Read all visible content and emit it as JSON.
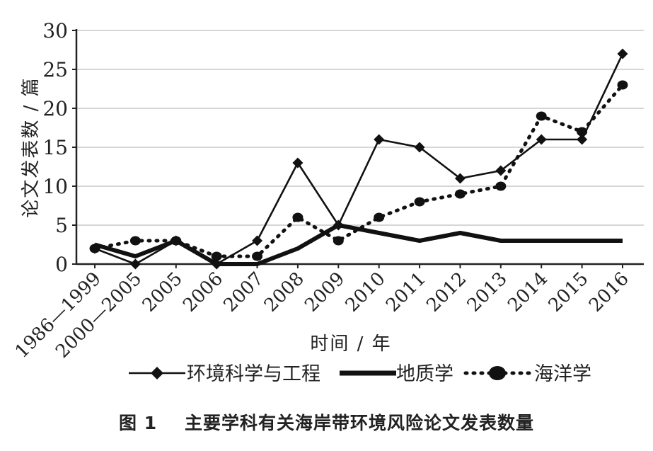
{
  "figure": {
    "caption": "图 1    主要学科有关海岸带环境风险论文发表数量"
  },
  "chart_data": {
    "type": "line",
    "title": "",
    "xlabel": "时间 / 年",
    "ylabel": "论文发表数 / 篇",
    "ylim": [
      0,
      30
    ],
    "yticks": [
      0,
      5,
      10,
      15,
      20,
      25,
      30
    ],
    "grid": "horizontal",
    "legend_position": "bottom",
    "categories": [
      "1986—1999",
      "2000—2005",
      "2005",
      "2006",
      "2007",
      "2008",
      "2009",
      "2010",
      "2011",
      "2012",
      "2013",
      "2014",
      "2015",
      "2016"
    ],
    "series": [
      {
        "name": "环境科学与工程",
        "style": "solid-diamond",
        "color": "#111111",
        "values": [
          2,
          0,
          3,
          0,
          3,
          13,
          5,
          16,
          15,
          11,
          12,
          16,
          16,
          27
        ]
      },
      {
        "name": "地质学",
        "style": "thick-solid",
        "color": "#111111",
        "values": [
          2.5,
          1,
          3,
          0,
          0,
          2,
          5,
          4,
          3,
          4,
          3,
          3,
          3,
          3
        ]
      },
      {
        "name": "海洋学",
        "style": "dotted-circle",
        "color": "#111111",
        "values": [
          2,
          3,
          3,
          1,
          1,
          6,
          3,
          6,
          8,
          9,
          10,
          19,
          17,
          23
        ]
      }
    ]
  }
}
